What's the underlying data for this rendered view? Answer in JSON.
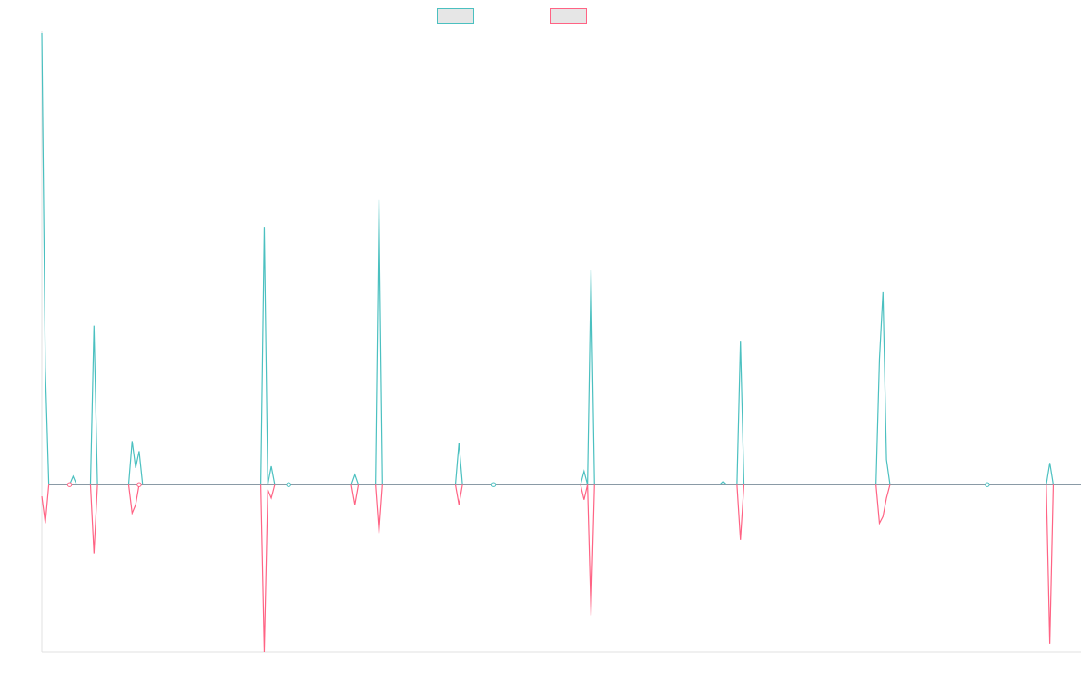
{
  "chart_data": {
    "type": "line",
    "x_count": 300,
    "ylim": [
      -100,
      270
    ],
    "legend_position": "top-center",
    "grid": false,
    "colors": {
      "series_a": "#4bc0c0",
      "series_b": "#ff6384",
      "legend_fill": "#e6e6e6",
      "axis": "#e0e0e0",
      "zero_line": "#8a9aa6"
    },
    "series": [
      {
        "key": "series_a",
        "name": "",
        "spikes": [
          {
            "x": 0,
            "y": 270
          },
          {
            "x": 1,
            "y": 70
          },
          {
            "x": 2,
            "y": 0
          },
          {
            "x": 8,
            "y": 0
          },
          {
            "x": 9,
            "y": 5
          },
          {
            "x": 10,
            "y": 0
          },
          {
            "x": 14,
            "y": 0
          },
          {
            "x": 15,
            "y": 95
          },
          {
            "x": 16,
            "y": 0
          },
          {
            "x": 25,
            "y": 0
          },
          {
            "x": 26,
            "y": 26
          },
          {
            "x": 27,
            "y": 10
          },
          {
            "x": 28,
            "y": 20
          },
          {
            "x": 29,
            "y": 0
          },
          {
            "x": 63,
            "y": 0
          },
          {
            "x": 64,
            "y": 154
          },
          {
            "x": 65,
            "y": 0
          },
          {
            "x": 66,
            "y": 11
          },
          {
            "x": 67,
            "y": 0
          },
          {
            "x": 89,
            "y": 0
          },
          {
            "x": 90,
            "y": 6
          },
          {
            "x": 91,
            "y": 0
          },
          {
            "x": 96,
            "y": 0
          },
          {
            "x": 97,
            "y": 170
          },
          {
            "x": 98,
            "y": 0
          },
          {
            "x": 119,
            "y": 0
          },
          {
            "x": 120,
            "y": 25
          },
          {
            "x": 121,
            "y": 0
          },
          {
            "x": 155,
            "y": 0
          },
          {
            "x": 156,
            "y": 8
          },
          {
            "x": 157,
            "y": 0
          },
          {
            "x": 158,
            "y": 128
          },
          {
            "x": 159,
            "y": 0
          },
          {
            "x": 195,
            "y": 0
          },
          {
            "x": 196,
            "y": 2
          },
          {
            "x": 197,
            "y": 0
          },
          {
            "x": 200,
            "y": 0
          },
          {
            "x": 201,
            "y": 86
          },
          {
            "x": 202,
            "y": 0
          },
          {
            "x": 240,
            "y": 0
          },
          {
            "x": 241,
            "y": 75
          },
          {
            "x": 242,
            "y": 115
          },
          {
            "x": 243,
            "y": 15
          },
          {
            "x": 244,
            "y": 0
          },
          {
            "x": 289,
            "y": 0
          },
          {
            "x": 290,
            "y": 13
          },
          {
            "x": 291,
            "y": 0
          }
        ]
      },
      {
        "key": "series_b",
        "name": "",
        "spikes": [
          {
            "x": 0,
            "y": -7
          },
          {
            "x": 1,
            "y": -23
          },
          {
            "x": 2,
            "y": 0
          },
          {
            "x": 14,
            "y": 0
          },
          {
            "x": 15,
            "y": -41
          },
          {
            "x": 16,
            "y": 0
          },
          {
            "x": 25,
            "y": 0
          },
          {
            "x": 26,
            "y": -17
          },
          {
            "x": 27,
            "y": -12
          },
          {
            "x": 28,
            "y": 0
          },
          {
            "x": 63,
            "y": 0
          },
          {
            "x": 64,
            "y": -100
          },
          {
            "x": 65,
            "y": -3
          },
          {
            "x": 66,
            "y": -8
          },
          {
            "x": 67,
            "y": 0
          },
          {
            "x": 89,
            "y": 0
          },
          {
            "x": 90,
            "y": -12
          },
          {
            "x": 91,
            "y": 0
          },
          {
            "x": 96,
            "y": 0
          },
          {
            "x": 97,
            "y": -29
          },
          {
            "x": 98,
            "y": 0
          },
          {
            "x": 119,
            "y": 0
          },
          {
            "x": 120,
            "y": -12
          },
          {
            "x": 121,
            "y": 0
          },
          {
            "x": 155,
            "y": 0
          },
          {
            "x": 156,
            "y": -9
          },
          {
            "x": 157,
            "y": 0
          },
          {
            "x": 158,
            "y": -78
          },
          {
            "x": 159,
            "y": 0
          },
          {
            "x": 200,
            "y": 0
          },
          {
            "x": 201,
            "y": -33
          },
          {
            "x": 202,
            "y": 0
          },
          {
            "x": 240,
            "y": 0
          },
          {
            "x": 241,
            "y": -23
          },
          {
            "x": 242,
            "y": -19
          },
          {
            "x": 243,
            "y": -8
          },
          {
            "x": 244,
            "y": 0
          },
          {
            "x": 289,
            "y": 0
          },
          {
            "x": 290,
            "y": -95
          },
          {
            "x": 291,
            "y": 0
          }
        ]
      }
    ],
    "zero_markers": [
      {
        "x": 8,
        "series": "series_b"
      },
      {
        "x": 28,
        "series": "series_b"
      },
      {
        "x": 71,
        "series": "series_a"
      },
      {
        "x": 130,
        "series": "series_a"
      },
      {
        "x": 272,
        "series": "series_a"
      }
    ]
  }
}
